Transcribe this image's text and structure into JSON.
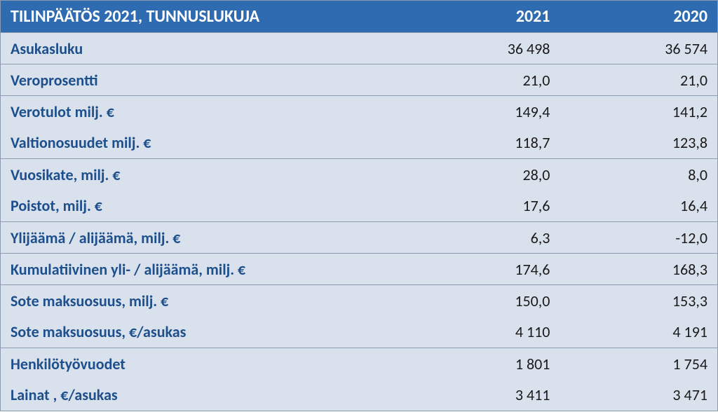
{
  "table": {
    "title": "TILINPÄÄTÖS 2021, TUNNUSLUKUJA",
    "headers": [
      "2021",
      "2020"
    ],
    "header_bg": "#2e6bb0",
    "header_fg": "#ffffff",
    "row_bg": "#d9e1ec",
    "label_fg": "#1d4f8c",
    "value_fg": "#1a1a1a",
    "border_color": "#8a9bb0",
    "title_fontsize": 24,
    "cell_fontsize": 22,
    "groups": [
      {
        "rows": [
          {
            "label": "Asukasluku",
            "v2021": "36 498",
            "v2020": "36 574"
          }
        ]
      },
      {
        "rows": [
          {
            "label": "Veroprosentti",
            "v2021": "21,0",
            "v2020": "21,0"
          }
        ]
      },
      {
        "rows": [
          {
            "label": "Verotulot milj. €",
            "v2021": "149,4",
            "v2020": "141,2"
          },
          {
            "label": "Valtionosuudet milj. €",
            "v2021": "118,7",
            "v2020": "123,8"
          }
        ]
      },
      {
        "rows": [
          {
            "label": "Vuosikate, milj. €",
            "v2021": "28,0",
            "v2020": "8,0"
          },
          {
            "label": "Poistot, milj. €",
            "v2021": "17,6",
            "v2020": "16,4"
          }
        ]
      },
      {
        "rows": [
          {
            "label": "Ylijäämä / alijäämä, milj. €",
            "v2021": "6,3",
            "v2020": "-12,0"
          }
        ]
      },
      {
        "rows": [
          {
            "label": "Kumulatiivinen yli- / alijäämä, milj. €",
            "v2021": "174,6",
            "v2020": "168,3"
          }
        ]
      },
      {
        "rows": [
          {
            "label": "Sote maksuosuus, milj. €",
            "v2021": "150,0",
            "v2020": "153,3"
          },
          {
            "label": "Sote maksuosuus, €/asukas",
            "v2021": "4 110",
            "v2020": "4 191"
          }
        ]
      },
      {
        "rows": [
          {
            "label": "Henkilötyövuodet",
            "v2021": "1 801",
            "v2020": "1 754"
          },
          {
            "label": "Lainat , €/asukas",
            "v2021": "3 411",
            "v2020": "3 471"
          }
        ]
      }
    ],
    "col_widths": [
      "56%",
      "22%",
      "22%"
    ]
  }
}
